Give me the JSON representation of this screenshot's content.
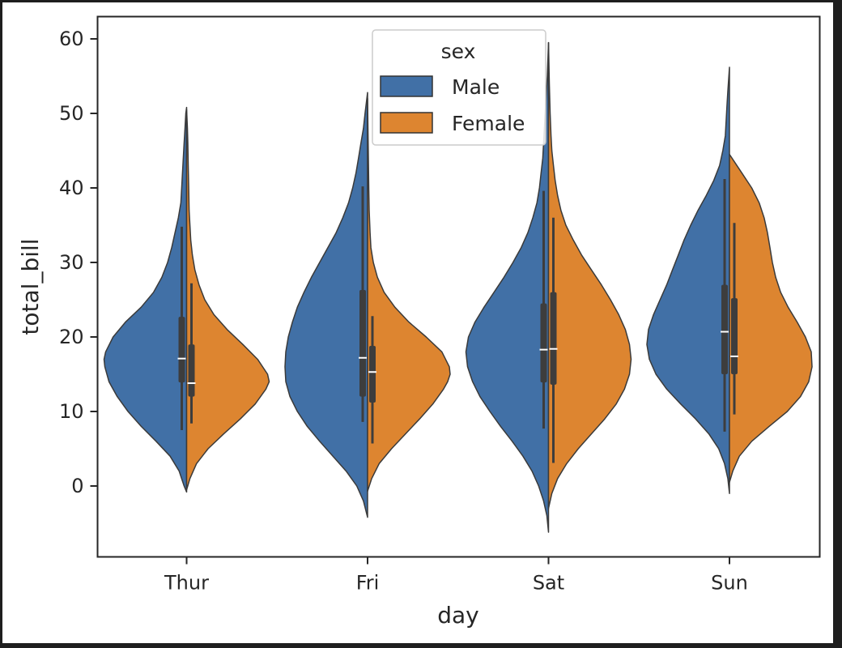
{
  "chart_data": {
    "type": "violin",
    "split": true,
    "x": {
      "label": "day",
      "categories": [
        "Thur",
        "Fri",
        "Sat",
        "Sun"
      ]
    },
    "y": {
      "label": "total_bill",
      "ticks": [
        0,
        10,
        20,
        30,
        40,
        50,
        60
      ],
      "ylim": [
        -9.3,
        63
      ]
    },
    "grid": false,
    "legend": {
      "title": "sex",
      "placement": "top-center"
    },
    "series": [
      {
        "name": "Male",
        "color": "#4170a6"
      },
      {
        "name": "Female",
        "color": "#dd8530"
      }
    ],
    "violins": {
      "Male": [
        {
          "day": "Thur",
          "range": [
            -0.8,
            50.8
          ],
          "profile": [
            [
              -0.8,
              0
            ],
            [
              0,
              0.03
            ],
            [
              2,
              0.09
            ],
            [
              4,
              0.2
            ],
            [
              6,
              0.37
            ],
            [
              8,
              0.55
            ],
            [
              10,
              0.71
            ],
            [
              12,
              0.84
            ],
            [
              14,
              0.94
            ],
            [
              16,
              0.99
            ],
            [
              17,
              1.0
            ],
            [
              18,
              0.98
            ],
            [
              20,
              0.89
            ],
            [
              22,
              0.74
            ],
            [
              24,
              0.55
            ],
            [
              26,
              0.4
            ],
            [
              28,
              0.3
            ],
            [
              30,
              0.23
            ],
            [
              32,
              0.18
            ],
            [
              34,
              0.14
            ],
            [
              36,
              0.1
            ],
            [
              38,
              0.07
            ],
            [
              40,
              0.06
            ],
            [
              42,
              0.05
            ],
            [
              44,
              0.04
            ],
            [
              46,
              0.03
            ],
            [
              48,
              0.02
            ],
            [
              50,
              0.01
            ],
            [
              50.8,
              0
            ]
          ],
          "box": {
            "q1": 13.9,
            "median": 17.1,
            "q3": 22.7,
            "whisker_low": 7.5,
            "whisker_high": 34.8
          }
        },
        {
          "day": "Fri",
          "range": [
            -4.2,
            52.8
          ],
          "profile": [
            [
              -4.2,
              0
            ],
            [
              -2,
              0.05
            ],
            [
              0,
              0.13
            ],
            [
              2,
              0.26
            ],
            [
              4,
              0.42
            ],
            [
              6,
              0.58
            ],
            [
              8,
              0.73
            ],
            [
              10,
              0.85
            ],
            [
              12,
              0.94
            ],
            [
              14,
              0.99
            ],
            [
              16,
              1.0
            ],
            [
              18,
              0.99
            ],
            [
              20,
              0.96
            ],
            [
              22,
              0.91
            ],
            [
              24,
              0.85
            ],
            [
              26,
              0.77
            ],
            [
              28,
              0.68
            ],
            [
              30,
              0.58
            ],
            [
              32,
              0.48
            ],
            [
              34,
              0.38
            ],
            [
              36,
              0.3
            ],
            [
              38,
              0.23
            ],
            [
              40,
              0.18
            ],
            [
              42,
              0.14
            ],
            [
              44,
              0.11
            ],
            [
              46,
              0.08
            ],
            [
              48,
              0.05
            ],
            [
              50,
              0.03
            ],
            [
              52.8,
              0
            ]
          ],
          "box": {
            "q1": 12.0,
            "median": 17.2,
            "q3": 26.3,
            "whisker_low": 8.6,
            "whisker_high": 40.2
          }
        },
        {
          "day": "Sat",
          "range": [
            -6.2,
            59.5
          ],
          "profile": [
            [
              -6.2,
              0
            ],
            [
              -4,
              0.02
            ],
            [
              -2,
              0.06
            ],
            [
              0,
              0.12
            ],
            [
              2,
              0.2
            ],
            [
              4,
              0.31
            ],
            [
              6,
              0.44
            ],
            [
              8,
              0.58
            ],
            [
              10,
              0.71
            ],
            [
              12,
              0.83
            ],
            [
              14,
              0.92
            ],
            [
              16,
              0.98
            ],
            [
              18,
              1.0
            ],
            [
              20,
              0.97
            ],
            [
              22,
              0.89
            ],
            [
              24,
              0.78
            ],
            [
              26,
              0.66
            ],
            [
              28,
              0.54
            ],
            [
              30,
              0.43
            ],
            [
              32,
              0.33
            ],
            [
              34,
              0.25
            ],
            [
              36,
              0.19
            ],
            [
              38,
              0.14
            ],
            [
              40,
              0.11
            ],
            [
              42,
              0.09
            ],
            [
              44,
              0.07
            ],
            [
              46,
              0.06
            ],
            [
              48,
              0.05
            ],
            [
              50,
              0.04
            ],
            [
              52,
              0.03
            ],
            [
              55,
              0.015
            ],
            [
              59.5,
              0
            ]
          ],
          "box": {
            "q1": 13.9,
            "median": 18.3,
            "q3": 24.5,
            "whisker_low": 7.7,
            "whisker_high": 39.6
          }
        },
        {
          "day": "Sun",
          "range": [
            -1.0,
            56.2
          ],
          "profile": [
            [
              -1,
              0
            ],
            [
              1,
              0.02
            ],
            [
              3,
              0.06
            ],
            [
              5,
              0.13
            ],
            [
              7,
              0.25
            ],
            [
              9,
              0.41
            ],
            [
              11,
              0.59
            ],
            [
              13,
              0.76
            ],
            [
              15,
              0.89
            ],
            [
              17,
              0.97
            ],
            [
              19,
              1.0
            ],
            [
              21,
              0.98
            ],
            [
              23,
              0.92
            ],
            [
              25,
              0.84
            ],
            [
              27,
              0.76
            ],
            [
              29,
              0.69
            ],
            [
              31,
              0.62
            ],
            [
              33,
              0.55
            ],
            [
              35,
              0.47
            ],
            [
              37,
              0.38
            ],
            [
              39,
              0.28
            ],
            [
              41,
              0.19
            ],
            [
              43,
              0.12
            ],
            [
              45,
              0.08
            ],
            [
              47,
              0.05
            ],
            [
              49,
              0.04
            ],
            [
              51,
              0.03
            ],
            [
              53,
              0.02
            ],
            [
              56.2,
              0
            ]
          ],
          "box": {
            "q1": 15.0,
            "median": 20.7,
            "q3": 27.0,
            "whisker_low": 7.3,
            "whisker_high": 41.2
          }
        }
      ],
      "Female": [
        {
          "day": "Thur",
          "range": [
            -0.5,
            50.5
          ],
          "profile": [
            [
              -0.5,
              0
            ],
            [
              1,
              0.04
            ],
            [
              3,
              0.12
            ],
            [
              5,
              0.26
            ],
            [
              7,
              0.45
            ],
            [
              9,
              0.65
            ],
            [
              11,
              0.83
            ],
            [
              13,
              0.96
            ],
            [
              14,
              1.0
            ],
            [
              15,
              0.98
            ],
            [
              17,
              0.86
            ],
            [
              19,
              0.68
            ],
            [
              21,
              0.49
            ],
            [
              23,
              0.33
            ],
            [
              25,
              0.22
            ],
            [
              27,
              0.15
            ],
            [
              29,
              0.1
            ],
            [
              31,
              0.07
            ],
            [
              33,
              0.05
            ],
            [
              35,
              0.04
            ],
            [
              37,
              0.03
            ],
            [
              40,
              0.025
            ],
            [
              43,
              0.02
            ],
            [
              46,
              0.015
            ],
            [
              48,
              0.01
            ],
            [
              50.5,
              0
            ]
          ],
          "box": {
            "q1": 12.0,
            "median": 13.8,
            "q3": 19.0,
            "whisker_low": 8.4,
            "whisker_high": 27.2
          }
        },
        {
          "day": "Fri",
          "range": [
            -0.7,
            52.0
          ],
          "profile": [
            [
              -0.7,
              0
            ],
            [
              1,
              0.05
            ],
            [
              3,
              0.14
            ],
            [
              5,
              0.29
            ],
            [
              7,
              0.46
            ],
            [
              9,
              0.63
            ],
            [
              11,
              0.79
            ],
            [
              13,
              0.92
            ],
            [
              14,
              0.97
            ],
            [
              15,
              1.0
            ],
            [
              16,
              0.99
            ],
            [
              18,
              0.9
            ],
            [
              20,
              0.71
            ],
            [
              22,
              0.5
            ],
            [
              24,
              0.33
            ],
            [
              26,
              0.2
            ],
            [
              28,
              0.12
            ],
            [
              30,
              0.07
            ],
            [
              32,
              0.04
            ],
            [
              34,
              0.03
            ],
            [
              37,
              0.02
            ],
            [
              40,
              0.015
            ],
            [
              44,
              0.01
            ],
            [
              48,
              0.005
            ],
            [
              52,
              0
            ]
          ],
          "box": {
            "q1": 11.2,
            "median": 15.3,
            "q3": 18.8,
            "whisker_low": 5.7,
            "whisker_high": 22.8
          }
        },
        {
          "day": "Sat",
          "range": [
            -3.0,
            59.5
          ],
          "profile": [
            [
              -3,
              0
            ],
            [
              -1,
              0.04
            ],
            [
              1,
              0.11
            ],
            [
              3,
              0.22
            ],
            [
              5,
              0.36
            ],
            [
              7,
              0.52
            ],
            [
              9,
              0.68
            ],
            [
              11,
              0.82
            ],
            [
              13,
              0.92
            ],
            [
              15,
              0.98
            ],
            [
              17,
              1.0
            ],
            [
              19,
              0.98
            ],
            [
              21,
              0.93
            ],
            [
              23,
              0.85
            ],
            [
              25,
              0.75
            ],
            [
              27,
              0.64
            ],
            [
              29,
              0.52
            ],
            [
              31,
              0.4
            ],
            [
              33,
              0.3
            ],
            [
              35,
              0.21
            ],
            [
              37,
              0.15
            ],
            [
              39,
              0.11
            ],
            [
              41,
              0.08
            ],
            [
              43,
              0.06
            ],
            [
              45,
              0.04
            ],
            [
              47,
              0.03
            ],
            [
              50,
              0.02
            ],
            [
              54,
              0.01
            ],
            [
              59.5,
              0
            ]
          ],
          "box": {
            "q1": 13.6,
            "median": 18.4,
            "q3": 26.0,
            "whisker_low": 3.1,
            "whisker_high": 36.0
          }
        },
        {
          "day": "Sun",
          "range": [
            0.5,
            44.5
          ],
          "profile": [
            [
              0.5,
              0
            ],
            [
              2,
              0.04
            ],
            [
              4,
              0.12
            ],
            [
              6,
              0.27
            ],
            [
              8,
              0.48
            ],
            [
              10,
              0.7
            ],
            [
              12,
              0.86
            ],
            [
              14,
              0.96
            ],
            [
              16,
              1.0
            ],
            [
              18,
              0.99
            ],
            [
              20,
              0.92
            ],
            [
              22,
              0.82
            ],
            [
              24,
              0.71
            ],
            [
              26,
              0.62
            ],
            [
              28,
              0.56
            ],
            [
              30,
              0.52
            ],
            [
              32,
              0.49
            ],
            [
              34,
              0.46
            ],
            [
              36,
              0.42
            ],
            [
              38,
              0.36
            ],
            [
              40,
              0.27
            ],
            [
              42,
              0.15
            ],
            [
              44.5,
              0
            ]
          ],
          "box": {
            "q1": 15.0,
            "median": 17.4,
            "q3": 25.2,
            "whisker_low": 9.6,
            "whisker_high": 35.3
          }
        }
      ]
    }
  }
}
